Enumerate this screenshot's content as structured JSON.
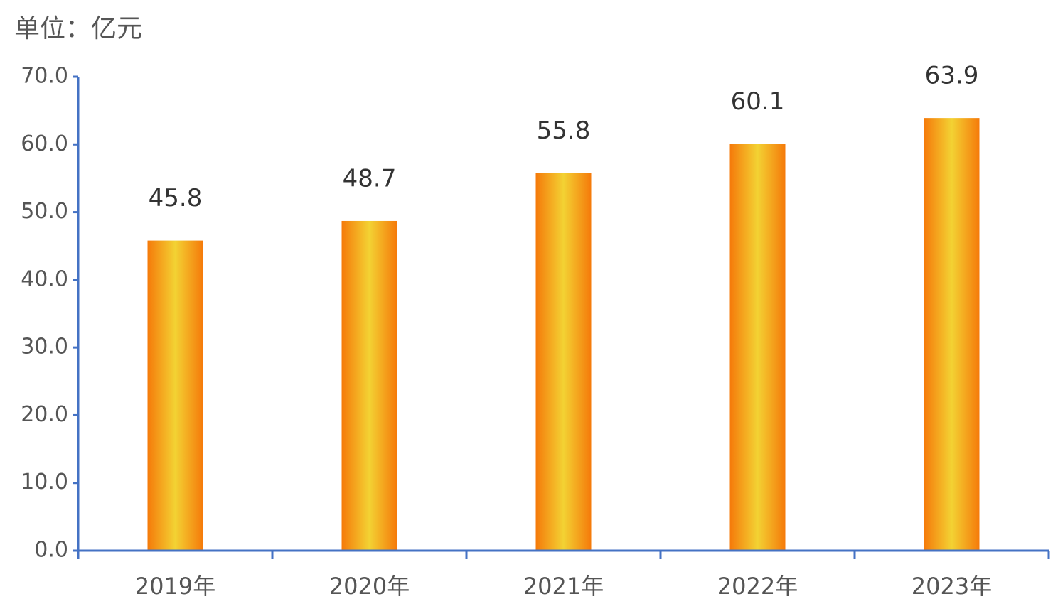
{
  "chart_data": {
    "type": "bar",
    "title": "单位：亿元",
    "categories": [
      "2019年",
      "2020年",
      "2021年",
      "2022年",
      "2023年"
    ],
    "values": [
      45.8,
      48.7,
      55.8,
      60.1,
      63.9
    ],
    "ylim": [
      0,
      70
    ],
    "yticks": [
      {
        "value": 0,
        "label": "0.0"
      },
      {
        "value": 10,
        "label": "10.0"
      },
      {
        "value": 20,
        "label": "20.0"
      },
      {
        "value": 30,
        "label": "30.0"
      },
      {
        "value": 40,
        "label": "40.0"
      },
      {
        "value": 50,
        "label": "50.0"
      },
      {
        "value": 60,
        "label": "60.0"
      },
      {
        "value": 70,
        "label": "70.0"
      }
    ],
    "grid": false
  }
}
